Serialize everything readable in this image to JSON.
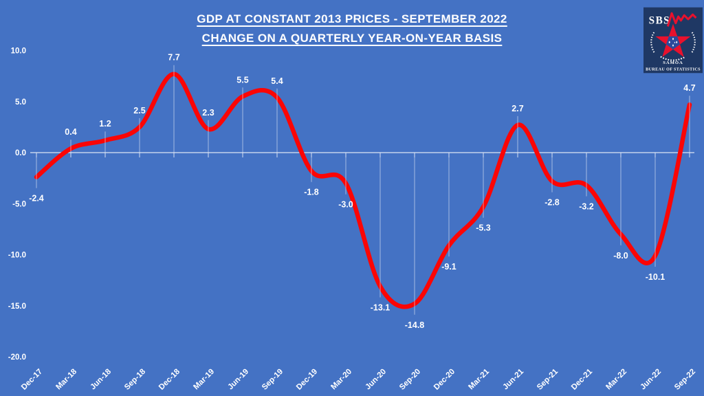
{
  "title": {
    "line1": "GDP AT CONSTANT 2013 PRICES - SEPTEMBER 2022",
    "line2": "CHANGE ON A QUARTERLY YEAR-ON-YEAR BASIS"
  },
  "logo": {
    "acronym": "SBS",
    "country": "SAMOA",
    "org": "BUREAU OF STATISTICS"
  },
  "colors": {
    "background": "#4472C4",
    "line": "#FB0505",
    "text": "#FFFFFF",
    "axis_line": "#E6ECF8",
    "stem": "#DDE6F5",
    "logo_background": "#1F3864",
    "logo_red": "#E8112D",
    "logo_pentagon": "#2B4A9B"
  },
  "chart_data": {
    "type": "line",
    "title": "GDP AT CONSTANT 2013 PRICES - SEPTEMBER 2022",
    "subtitle": "CHANGE ON A QUARTERLY YEAR-ON-YEAR BASIS",
    "categories": [
      "Dec-17",
      "Mar-18",
      "Jun-18",
      "Sep-18",
      "Dec-18",
      "Mar-19",
      "Jun-19",
      "Sep-19",
      "Dec-19",
      "Mar-20",
      "Jun-20",
      "Sep-20",
      "Dec-20",
      "Mar-21",
      "Jun-21",
      "Sep-21",
      "Dec-21",
      "Mar-22",
      "Jun-22",
      "Sep-22"
    ],
    "values": [
      -2.4,
      0.4,
      1.2,
      2.5,
      7.7,
      2.3,
      5.5,
      5.4,
      -1.8,
      -3.0,
      -13.1,
      -14.8,
      -9.1,
      -5.3,
      2.7,
      -2.8,
      -3.2,
      -8.0,
      -10.1,
      4.7
    ],
    "yticks": [
      10.0,
      5.0,
      0.0,
      -5.0,
      -10.0,
      -15.0,
      -20.0
    ],
    "ylim": [
      -20,
      10
    ],
    "xlabel": "",
    "ylabel": "",
    "grid": "zero-axis-line-only",
    "legend": "none",
    "smooth": true,
    "data_labels": "one-decimal outside each point"
  }
}
